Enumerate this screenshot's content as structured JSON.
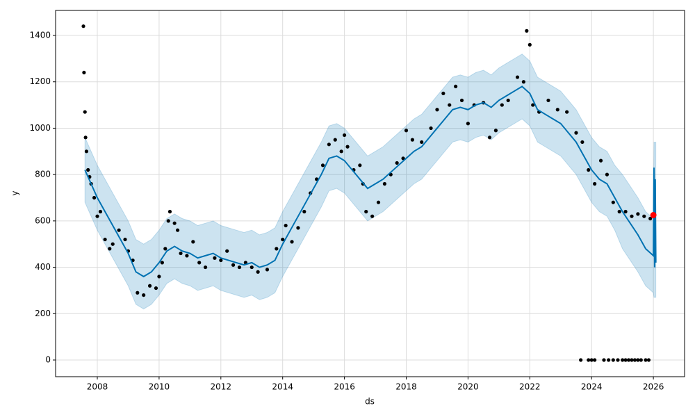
{
  "chart_data": {
    "type": "line",
    "x_label": "ds",
    "y_label": "y",
    "xlim": [
      2006.65,
      2027.01
    ],
    "ylim": [
      -72,
      1508
    ],
    "xticks": [
      2008,
      2010,
      2012,
      2014,
      2016,
      2018,
      2020,
      2022,
      2024,
      2026
    ],
    "yticks": [
      0,
      200,
      400,
      600,
      800,
      1000,
      1200,
      1400
    ],
    "grid": true,
    "forecast": {
      "color": "#0072B2",
      "band_color": "#0072B2",
      "x": [
        2007.6,
        2007.8,
        2008,
        2008.25,
        2008.5,
        2008.75,
        2009,
        2009.25,
        2009.5,
        2009.75,
        2010,
        2010.25,
        2010.5,
        2010.75,
        2011,
        2011.25,
        2011.5,
        2011.75,
        2012,
        2012.25,
        2012.5,
        2012.75,
        2013,
        2013.25,
        2013.5,
        2013.75,
        2014,
        2014.25,
        2014.5,
        2014.75,
        2015,
        2015.25,
        2015.5,
        2015.75,
        2016,
        2016.25,
        2016.5,
        2016.75,
        2017,
        2017.25,
        2017.5,
        2017.75,
        2018,
        2018.25,
        2018.5,
        2018.75,
        2019,
        2019.25,
        2019.5,
        2019.75,
        2020,
        2020.25,
        2020.5,
        2020.75,
        2021,
        2021.25,
        2021.5,
        2021.75,
        2022,
        2022.25,
        2022.5,
        2022.75,
        2023,
        2023.25,
        2023.5,
        2023.75,
        2024,
        2024.25,
        2024.5,
        2024.75,
        2025,
        2025.25,
        2025.5,
        2025.75,
        2026,
        2026.02,
        2026.04,
        2026.06,
        2026.08
      ],
      "values": [
        820,
        760,
        700,
        640,
        580,
        520,
        460,
        380,
        360,
        380,
        420,
        470,
        490,
        470,
        460,
        440,
        450,
        460,
        440,
        430,
        420,
        410,
        420,
        400,
        410,
        430,
        500,
        560,
        620,
        680,
        740,
        800,
        870,
        880,
        860,
        820,
        780,
        740,
        760,
        780,
        810,
        840,
        870,
        900,
        920,
        960,
        1000,
        1040,
        1080,
        1090,
        1080,
        1100,
        1110,
        1090,
        1120,
        1140,
        1160,
        1180,
        1150,
        1080,
        1060,
        1040,
        1020,
        980,
        940,
        880,
        820,
        780,
        760,
        700,
        640,
        590,
        540,
        480,
        450,
        830,
        400,
        780,
        420
      ],
      "lower": [
        680,
        620,
        560,
        500,
        440,
        380,
        320,
        240,
        220,
        240,
        280,
        330,
        350,
        330,
        320,
        300,
        310,
        320,
        300,
        290,
        280,
        270,
        280,
        260,
        270,
        290,
        360,
        420,
        480,
        540,
        600,
        660,
        730,
        740,
        720,
        680,
        640,
        600,
        620,
        640,
        670,
        700,
        730,
        760,
        780,
        820,
        860,
        900,
        940,
        950,
        940,
        960,
        970,
        950,
        980,
        1000,
        1020,
        1040,
        1010,
        940,
        920,
        900,
        880,
        840,
        800,
        740,
        680,
        640,
        620,
        560,
        480,
        430,
        380,
        320,
        290,
        270,
        270,
        270,
        270
      ],
      "upper": [
        960,
        900,
        840,
        780,
        720,
        660,
        600,
        520,
        500,
        520,
        560,
        610,
        630,
        610,
        600,
        580,
        590,
        600,
        580,
        570,
        560,
        550,
        560,
        540,
        550,
        570,
        640,
        700,
        760,
        820,
        880,
        940,
        1010,
        1020,
        1000,
        960,
        920,
        880,
        900,
        920,
        950,
        980,
        1010,
        1040,
        1060,
        1100,
        1140,
        1180,
        1220,
        1230,
        1220,
        1240,
        1250,
        1230,
        1260,
        1280,
        1300,
        1320,
        1290,
        1220,
        1200,
        1180,
        1160,
        1120,
        1080,
        1020,
        960,
        920,
        900,
        840,
        800,
        750,
        700,
        640,
        610,
        940,
        940,
        940,
        940
      ]
    },
    "observed": {
      "color": "#000000",
      "x": [
        2007.55,
        2007.57,
        2007.6,
        2007.62,
        2007.65,
        2007.7,
        2007.75,
        2007.8,
        2007.9,
        2008,
        2008.1,
        2008.25,
        2008.4,
        2008.5,
        2008.7,
        2008.9,
        2009,
        2009.15,
        2009.3,
        2009.5,
        2009.7,
        2009.9,
        2010,
        2010.1,
        2010.2,
        2010.3,
        2010.35,
        2010.5,
        2010.6,
        2010.7,
        2010.9,
        2011.1,
        2011.3,
        2011.5,
        2011.8,
        2012,
        2012.2,
        2012.4,
        2012.6,
        2012.8,
        2013,
        2013.2,
        2013.5,
        2013.8,
        2014,
        2014.1,
        2014.3,
        2014.5,
        2014.7,
        2014.9,
        2015.1,
        2015.3,
        2015.5,
        2015.7,
        2015.9,
        2016,
        2016.1,
        2016.3,
        2016.5,
        2016.6,
        2016.7,
        2016.9,
        2017.1,
        2017.3,
        2017.5,
        2017.7,
        2017.9,
        2018,
        2018.2,
        2018.5,
        2018.8,
        2019,
        2019.2,
        2019.4,
        2019.6,
        2019.8,
        2020,
        2020.2,
        2020.5,
        2020.7,
        2020.9,
        2021.1,
        2021.3,
        2021.6,
        2021.8,
        2021.9,
        2022,
        2022.1,
        2022.3,
        2022.6,
        2022.9,
        2023.2,
        2023.5,
        2023.7,
        2023.9,
        2024.1,
        2024.3,
        2024.5,
        2024.7,
        2024.9,
        2025.1,
        2025.3,
        2025.5,
        2025.7,
        2025.9,
        2023.65,
        2023.9,
        2024,
        2024.1,
        2024.4,
        2024.55,
        2024.7,
        2024.85,
        2025,
        2025.1,
        2025.2,
        2025.3,
        2025.4,
        2025.5,
        2025.6,
        2025.75,
        2025.85
      ],
      "values": [
        1440,
        1240,
        1070,
        960,
        900,
        820,
        790,
        760,
        700,
        620,
        640,
        520,
        480,
        500,
        560,
        520,
        470,
        430,
        290,
        280,
        320,
        310,
        360,
        420,
        480,
        600,
        640,
        590,
        560,
        460,
        450,
        510,
        420,
        400,
        440,
        430,
        470,
        410,
        400,
        420,
        400,
        380,
        390,
        480,
        520,
        580,
        510,
        570,
        640,
        720,
        780,
        840,
        930,
        950,
        900,
        970,
        920,
        820,
        840,
        760,
        640,
        620,
        680,
        760,
        800,
        850,
        870,
        990,
        950,
        940,
        1000,
        1080,
        1150,
        1100,
        1180,
        1120,
        1020,
        1100,
        1110,
        960,
        990,
        1100,
        1120,
        1220,
        1200,
        1420,
        1360,
        1100,
        1070,
        1120,
        1080,
        1070,
        980,
        940,
        820,
        760,
        860,
        800,
        680,
        640,
        640,
        620,
        630,
        620,
        610,
        0,
        0,
        0,
        0,
        0,
        0,
        0,
        0,
        0,
        0,
        0,
        0,
        0,
        0,
        0,
        0,
        0
      ]
    },
    "highlight": {
      "color": "#ff0000",
      "x": [
        2026.0
      ],
      "values": [
        625
      ]
    }
  }
}
